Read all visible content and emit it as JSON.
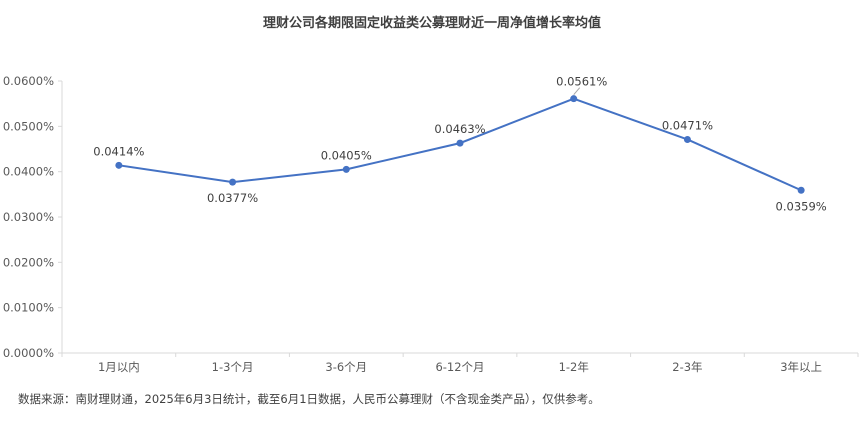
{
  "chart_data": {
    "type": "line",
    "title": "理财公司各期限固定收益类公募理财近一周净值增长率均值",
    "categories": [
      "1月以内",
      "1-3个月",
      "3-6个月",
      "6-12个月",
      "1-2年",
      "2-3年",
      "3年以上"
    ],
    "series": [
      {
        "values": [
          0.0414,
          0.0377,
          0.0405,
          0.0463,
          0.0561,
          0.0471,
          0.0359
        ],
        "labels": [
          "0.0414%",
          "0.0377%",
          "0.0405%",
          "0.0463%",
          "0.0561%",
          "0.0471%",
          "0.0359%"
        ]
      }
    ],
    "ylim": [
      0,
      0.06
    ],
    "yticks": [
      0,
      0.01,
      0.02,
      0.03,
      0.04,
      0.05,
      0.06
    ],
    "ytick_labels": [
      "0.0000%",
      "0.0100%",
      "0.0200%",
      "0.0300%",
      "0.0400%",
      "0.0500%",
      "0.0600%"
    ],
    "grid": false,
    "legend": "none",
    "line_color": "#4472C4",
    "axis_color": "#D9D9D9"
  },
  "footer": {
    "source": "数据来源：南财理财通，2025年6月3日统计，截至6月1日数据，人民币公募理财（不含现金类产品），仅供参考。"
  }
}
